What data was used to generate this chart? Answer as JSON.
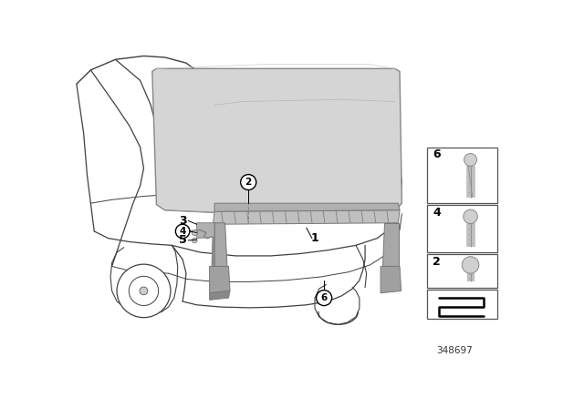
{
  "background_color": "#ffffff",
  "part_number": "348697",
  "line_color": "#404040",
  "roof_fill": "#d8d8d8",
  "roof_edge": "#888888",
  "bar_fill": "#aaaaaa",
  "bar_edge": "#777777",
  "bracket_fill": "#bbbbbb",
  "panel_edge": "#555555",
  "figure_width": 6.4,
  "figure_height": 4.48,
  "dpi": 100
}
